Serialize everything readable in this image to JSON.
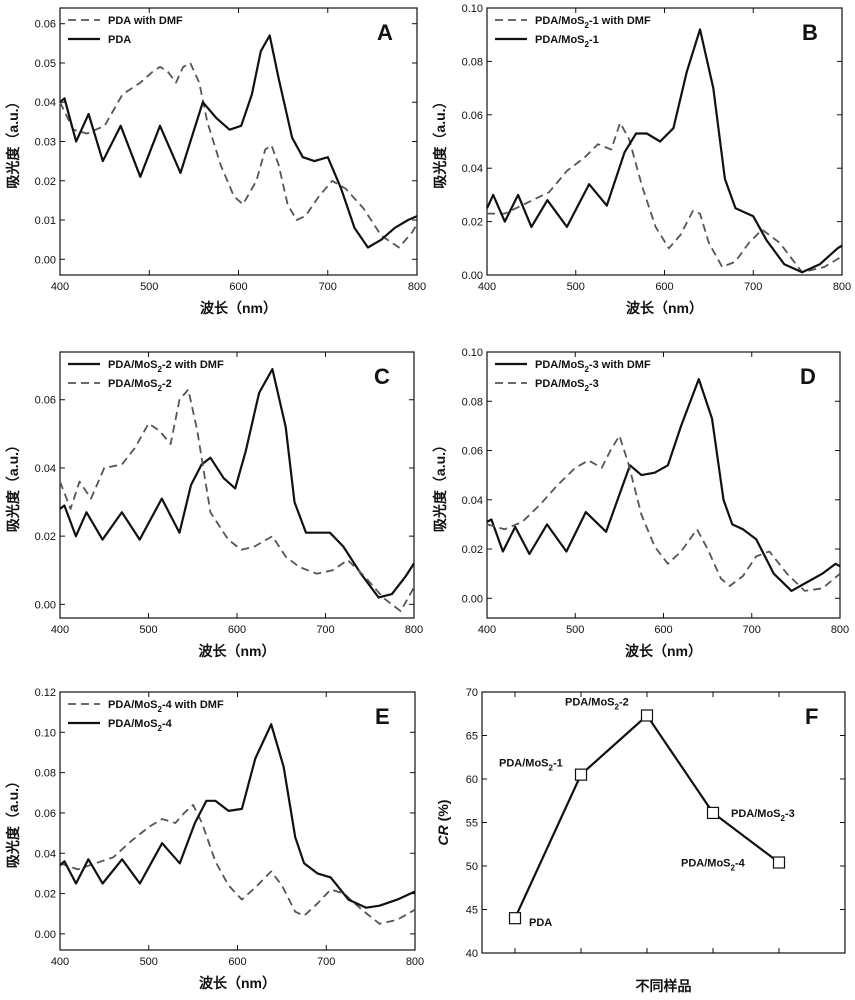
{
  "chart_data": [
    {
      "type": "line",
      "panel": "A",
      "xlabel": "波长（nm）",
      "ylabel": "吸光度（a.u.）",
      "xlim": [
        400,
        800
      ],
      "ylim": [
        -0.004,
        0.064
      ],
      "xticks": [
        400,
        500,
        600,
        700,
        800
      ],
      "xtick_labels": [
        "400",
        "500",
        "600",
        "700",
        "800"
      ],
      "yticks": [
        0.0,
        0.01,
        0.02,
        0.03,
        0.04,
        0.05,
        0.06
      ],
      "ytick_labels": [
        "0.00",
        "0.01",
        "0.02",
        "0.03",
        "0.04",
        "0.05",
        "0.06"
      ],
      "legend_position": "top-left",
      "series": [
        {
          "name": "PDA with DMF",
          "style": "dashed",
          "legend_label": [
            "PDA with DMF"
          ],
          "x": [
            400,
            415,
            430,
            450,
            470,
            490,
            505,
            512,
            520,
            530,
            538,
            546,
            556,
            565,
            580,
            595,
            605,
            620,
            630,
            637,
            645,
            655,
            665,
            675,
            690,
            705,
            720,
            740,
            760,
            780,
            795,
            800
          ],
          "y": [
            0.04,
            0.033,
            0.032,
            0.034,
            0.042,
            0.045,
            0.048,
            0.049,
            0.048,
            0.045,
            0.049,
            0.05,
            0.045,
            0.035,
            0.024,
            0.016,
            0.014,
            0.02,
            0.028,
            0.029,
            0.024,
            0.014,
            0.01,
            0.011,
            0.016,
            0.02,
            0.018,
            0.013,
            0.006,
            0.003,
            0.007,
            0.009
          ]
        },
        {
          "name": "PDA",
          "style": "solid",
          "legend_label": [
            "PDA"
          ],
          "x": [
            400,
            405,
            418,
            432,
            448,
            468,
            490,
            512,
            535,
            560,
            575,
            590,
            603,
            615,
            625,
            635,
            645,
            660,
            672,
            685,
            700,
            715,
            730,
            745,
            760,
            775,
            790,
            800
          ],
          "y": [
            0.04,
            0.041,
            0.03,
            0.037,
            0.025,
            0.034,
            0.021,
            0.034,
            0.022,
            0.04,
            0.036,
            0.033,
            0.034,
            0.042,
            0.053,
            0.057,
            0.046,
            0.031,
            0.026,
            0.025,
            0.026,
            0.018,
            0.008,
            0.003,
            0.005,
            0.008,
            0.01,
            0.011
          ]
        }
      ]
    },
    {
      "type": "line",
      "panel": "B",
      "xlabel": "波长（nm）",
      "ylabel": "吸光度（a.u.）",
      "xlim": [
        400,
        800
      ],
      "ylim": [
        0.0,
        0.1
      ],
      "xticks": [
        400,
        500,
        600,
        700,
        800
      ],
      "xtick_labels": [
        "400",
        "500",
        "600",
        "700",
        "800"
      ],
      "yticks": [
        0.0,
        0.02,
        0.04,
        0.06,
        0.08,
        0.1
      ],
      "ytick_labels": [
        "0.00",
        "0.02",
        "0.04",
        "0.06",
        "0.08",
        "0.10"
      ],
      "legend_position": "top-left",
      "series": [
        {
          "name": "PDA/MoS2-1 with DMF",
          "style": "dashed",
          "legend_label": [
            "PDA/MoS",
            "2",
            "-1 with DMF"
          ],
          "x": [
            400,
            420,
            445,
            470,
            490,
            510,
            525,
            540,
            550,
            560,
            575,
            590,
            605,
            618,
            632,
            640,
            650,
            665,
            680,
            695,
            710,
            730,
            755,
            780,
            800
          ],
          "y": [
            0.023,
            0.023,
            0.027,
            0.031,
            0.039,
            0.044,
            0.049,
            0.047,
            0.057,
            0.051,
            0.033,
            0.018,
            0.01,
            0.015,
            0.024,
            0.023,
            0.012,
            0.003,
            0.005,
            0.012,
            0.017,
            0.012,
            0.001,
            0.003,
            0.007
          ]
        },
        {
          "name": "PDA/MoS2-1",
          "style": "solid",
          "legend_label": [
            "PDA/MoS",
            "2",
            "-1"
          ],
          "x": [
            400,
            407,
            420,
            435,
            450,
            468,
            490,
            515,
            535,
            555,
            568,
            580,
            595,
            610,
            625,
            640,
            655,
            668,
            680,
            700,
            715,
            735,
            755,
            775,
            795,
            800
          ],
          "y": [
            0.025,
            0.03,
            0.02,
            0.03,
            0.018,
            0.028,
            0.018,
            0.034,
            0.026,
            0.046,
            0.053,
            0.053,
            0.05,
            0.055,
            0.076,
            0.092,
            0.07,
            0.036,
            0.025,
            0.022,
            0.013,
            0.004,
            0.001,
            0.004,
            0.01,
            0.011
          ]
        }
      ]
    },
    {
      "type": "line",
      "panel": "C",
      "xlabel": "波长（nm）",
      "ylabel": "吸光度（a.u.）",
      "xlim": [
        400,
        800
      ],
      "ylim": [
        -0.004,
        0.074
      ],
      "xticks": [
        400,
        500,
        600,
        700,
        800
      ],
      "xtick_labels": [
        "400",
        "500",
        "600",
        "700",
        "800"
      ],
      "yticks": [
        0.0,
        0.02,
        0.04,
        0.06
      ],
      "ytick_labels": [
        "0.00",
        "0.02",
        "0.04",
        "0.06"
      ],
      "legend_position": "top-left",
      "series": [
        {
          "name": "PDA/MoS2-2 with DMF",
          "style": "solid",
          "legend_label": [
            "PDA/MoS",
            "2",
            "-2 with DMF"
          ],
          "x": [
            400,
            405,
            418,
            430,
            448,
            470,
            490,
            515,
            535,
            548,
            560,
            570,
            585,
            598,
            610,
            625,
            640,
            655,
            665,
            678,
            695,
            705,
            720,
            740,
            760,
            775,
            790,
            800
          ],
          "y": [
            0.028,
            0.029,
            0.02,
            0.027,
            0.019,
            0.027,
            0.019,
            0.031,
            0.021,
            0.035,
            0.041,
            0.043,
            0.037,
            0.034,
            0.045,
            0.062,
            0.069,
            0.052,
            0.03,
            0.021,
            0.021,
            0.021,
            0.017,
            0.009,
            0.002,
            0.003,
            0.008,
            0.012
          ]
        },
        {
          "name": "PDA/MoS2-2",
          "style": "dashed",
          "legend_label": [
            "PDA/MoS",
            "2",
            "-2"
          ],
          "x": [
            400,
            412,
            422,
            435,
            450,
            470,
            485,
            500,
            512,
            525,
            535,
            545,
            555,
            570,
            590,
            605,
            620,
            640,
            655,
            670,
            690,
            708,
            725,
            745,
            765,
            785,
            800
          ],
          "y": [
            0.036,
            0.028,
            0.036,
            0.031,
            0.04,
            0.041,
            0.046,
            0.053,
            0.051,
            0.047,
            0.06,
            0.063,
            0.051,
            0.027,
            0.019,
            0.016,
            0.017,
            0.02,
            0.014,
            0.011,
            0.009,
            0.01,
            0.013,
            0.008,
            0.002,
            -0.002,
            0.005
          ]
        }
      ]
    },
    {
      "type": "line",
      "panel": "D",
      "xlabel": "波长（nm）",
      "ylabel": "吸光度（a.u.）",
      "xlim": [
        400,
        800
      ],
      "ylim": [
        -0.008,
        0.1
      ],
      "xticks": [
        400,
        500,
        600,
        700,
        800
      ],
      "xtick_labels": [
        "400",
        "500",
        "600",
        "700",
        "800"
      ],
      "yticks": [
        0.0,
        0.02,
        0.04,
        0.06,
        0.08,
        0.1
      ],
      "ytick_labels": [
        "0.00",
        "0.02",
        "0.04",
        "0.06",
        "0.08",
        "0.10"
      ],
      "legend_position": "top-left",
      "series": [
        {
          "name": "PDA/MoS2-3 with DMF",
          "style": "solid",
          "legend_label": [
            "PDA/MoS",
            "2",
            "-3 with DMF"
          ],
          "x": [
            400,
            405,
            418,
            432,
            448,
            468,
            490,
            512,
            535,
            552,
            562,
            575,
            590,
            605,
            620,
            640,
            655,
            668,
            678,
            690,
            705,
            725,
            745,
            760,
            780,
            795,
            800
          ],
          "y": [
            0.031,
            0.032,
            0.019,
            0.029,
            0.018,
            0.03,
            0.019,
            0.035,
            0.027,
            0.044,
            0.054,
            0.05,
            0.051,
            0.054,
            0.07,
            0.089,
            0.073,
            0.04,
            0.03,
            0.028,
            0.024,
            0.01,
            0.003,
            0.006,
            0.01,
            0.014,
            0.013
          ]
        },
        {
          "name": "PDA/MoS2-3",
          "style": "dashed",
          "legend_label": [
            "PDA/MoS",
            "2",
            "-3"
          ],
          "x": [
            400,
            420,
            440,
            460,
            480,
            500,
            515,
            530,
            540,
            550,
            560,
            575,
            590,
            605,
            620,
            638,
            650,
            665,
            675,
            690,
            705,
            720,
            740,
            760,
            780,
            800
          ],
          "y": [
            0.03,
            0.028,
            0.031,
            0.038,
            0.046,
            0.053,
            0.056,
            0.053,
            0.06,
            0.066,
            0.055,
            0.034,
            0.021,
            0.014,
            0.019,
            0.028,
            0.02,
            0.008,
            0.005,
            0.009,
            0.017,
            0.019,
            0.01,
            0.003,
            0.004,
            0.01
          ]
        }
      ]
    },
    {
      "type": "line",
      "panel": "E",
      "xlabel": "波长（nm）",
      "ylabel": "吸光度（a.u.）",
      "xlim": [
        400,
        800
      ],
      "ylim": [
        -0.008,
        0.12
      ],
      "xticks": [
        400,
        500,
        600,
        700,
        800
      ],
      "xtick_labels": [
        "400",
        "500",
        "600",
        "700",
        "800"
      ],
      "yticks": [
        0.0,
        0.02,
        0.04,
        0.06,
        0.08,
        0.1,
        0.12
      ],
      "ytick_labels": [
        "0.00",
        "0.02",
        "0.04",
        "0.06",
        "0.08",
        "0.10",
        "0.12"
      ],
      "legend_position": "top-left",
      "series": [
        {
          "name": "PDA/MoS2-4 with DMF",
          "style": "dashed",
          "legend_label": [
            "PDA/MoS",
            "2",
            "-4 with DMF"
          ],
          "x": [
            400,
            420,
            440,
            460,
            480,
            500,
            515,
            530,
            540,
            550,
            560,
            575,
            590,
            605,
            620,
            638,
            650,
            665,
            675,
            690,
            705,
            720,
            740,
            760,
            780,
            800
          ],
          "y": [
            0.035,
            0.032,
            0.035,
            0.038,
            0.046,
            0.053,
            0.057,
            0.055,
            0.06,
            0.064,
            0.055,
            0.036,
            0.024,
            0.017,
            0.023,
            0.031,
            0.024,
            0.011,
            0.009,
            0.015,
            0.022,
            0.02,
            0.012,
            0.005,
            0.007,
            0.012
          ]
        },
        {
          "name": "PDA/MoS2-4",
          "style": "solid",
          "legend_label": [
            "PDA/MoS",
            "2",
            "-4"
          ],
          "x": [
            400,
            405,
            418,
            432,
            448,
            470,
            490,
            515,
            535,
            552,
            565,
            575,
            590,
            605,
            620,
            638,
            652,
            665,
            675,
            690,
            705,
            725,
            745,
            760,
            780,
            800
          ],
          "y": [
            0.034,
            0.036,
            0.025,
            0.037,
            0.025,
            0.037,
            0.025,
            0.045,
            0.035,
            0.055,
            0.066,
            0.066,
            0.061,
            0.062,
            0.087,
            0.104,
            0.083,
            0.048,
            0.035,
            0.03,
            0.028,
            0.017,
            0.013,
            0.014,
            0.017,
            0.021
          ]
        }
      ]
    },
    {
      "type": "line",
      "panel": "F",
      "xlabel": "不同样品",
      "ylabel_parts": [
        "CR",
        " (%)"
      ],
      "xlim": [
        0.5,
        6.0
      ],
      "ylim": [
        40,
        70
      ],
      "xticks": [
        1,
        2,
        3,
        4,
        5
      ],
      "xtick_labels": [
        "",
        "",
        "",
        "",
        ""
      ],
      "yticks": [
        40,
        45,
        50,
        55,
        60,
        65,
        70
      ],
      "ytick_labels": [
        "40",
        "45",
        "50",
        "55",
        "60",
        "65",
        "70"
      ],
      "categories": [
        "PDA",
        "PDA/MoS2-1",
        "PDA/MoS2-2",
        "PDA/MoS2-3",
        "PDA/MoS2-4"
      ],
      "x": [
        1,
        2,
        3,
        4,
        5
      ],
      "values": [
        44.0,
        60.5,
        67.3,
        56.1,
        50.4
      ],
      "point_labels": [
        [
          "PDA"
        ],
        [
          "PDA/MoS",
          "2",
          "-1"
        ],
        [
          "PDA/MoS",
          "2",
          "-2"
        ],
        [
          "PDA/MoS",
          "2",
          "-3"
        ],
        [
          "PDA/MoS",
          "2",
          "-4"
        ]
      ],
      "marker": "open-square"
    }
  ]
}
